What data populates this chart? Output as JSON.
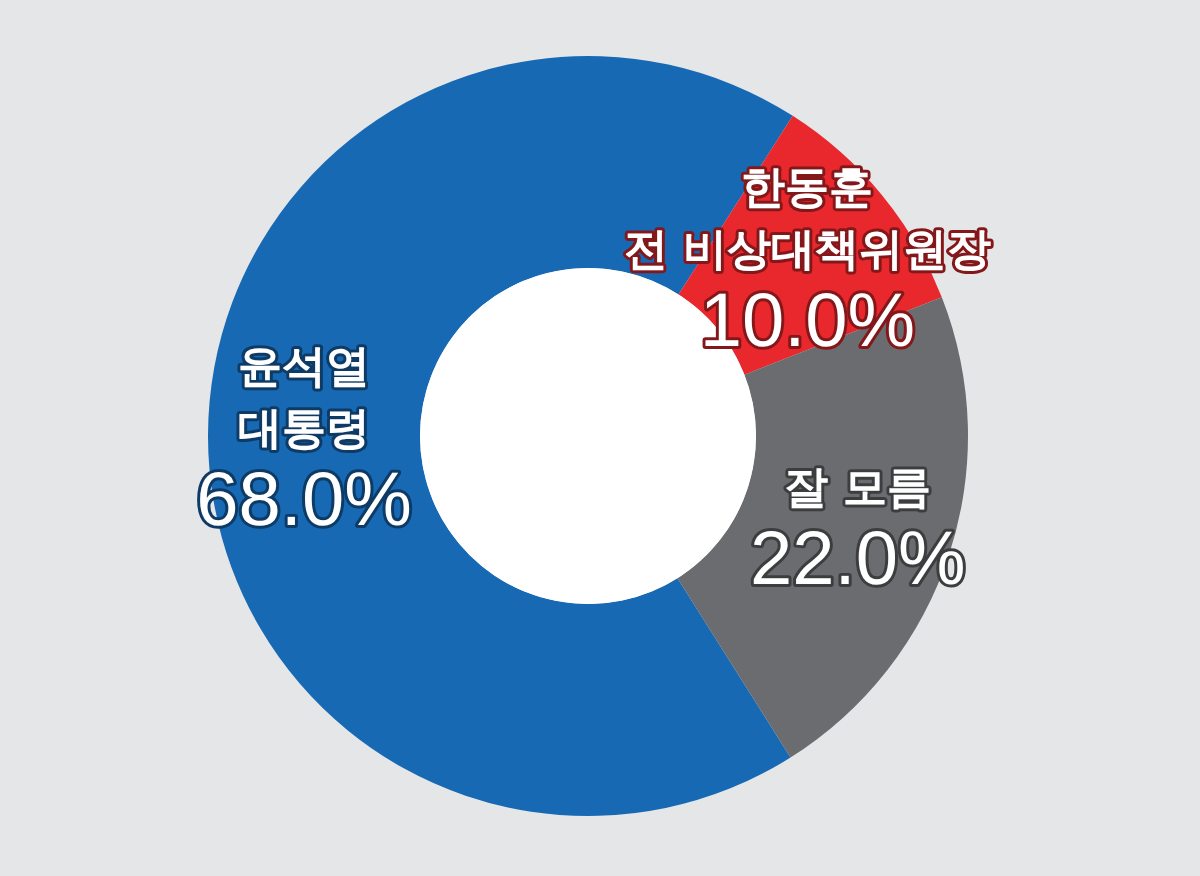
{
  "chart_data": {
    "type": "donut",
    "categories": [
      "윤석열\n대통령",
      "한동훈\n전 비상대책위원장",
      "잘 모름"
    ],
    "values": [
      68.0,
      10.0,
      22.0
    ],
    "colors": [
      "#1769b4",
      "#e8282c",
      "#6b6c6f"
    ],
    "value_labels": [
      "68.0%",
      "10.0%",
      "22.0%"
    ]
  }
}
